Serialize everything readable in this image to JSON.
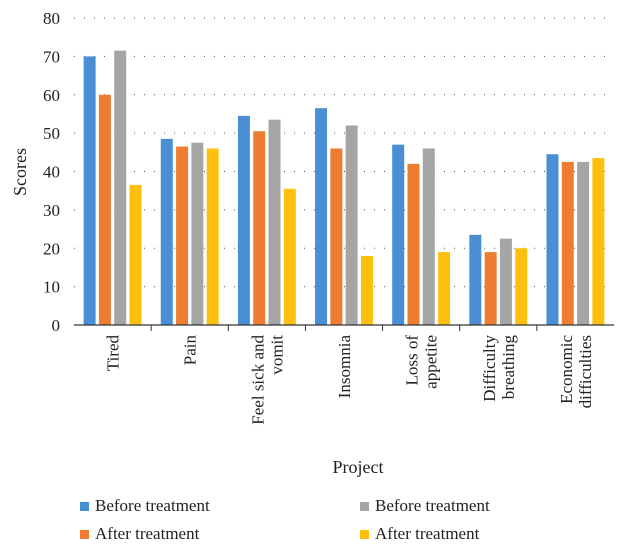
{
  "chart_data": {
    "type": "bar",
    "title": "",
    "xlabel": "Project",
    "ylabel": "Scores",
    "ylim": [
      0,
      80
    ],
    "yticks": [
      0,
      10,
      20,
      30,
      40,
      50,
      60,
      70,
      80
    ],
    "grid": "horizontal-dotted",
    "legend_position": "bottom",
    "categories": [
      [
        "Tired"
      ],
      [
        "Pain"
      ],
      [
        "Feel sick and",
        "vomit"
      ],
      [
        "Insomnia"
      ],
      [
        "Loss of",
        "appetite"
      ],
      [
        "Difficulty",
        "breathing"
      ],
      [
        "Economic",
        "difficulties"
      ]
    ],
    "series": [
      {
        "name": "Before treatment",
        "color": "#4a8fd4",
        "values": [
          70,
          48.5,
          54.5,
          56.5,
          47,
          23.5,
          44.5
        ]
      },
      {
        "name": "After treatment",
        "color": "#ee7d31",
        "values": [
          60,
          46.5,
          50.5,
          46,
          42,
          19,
          42.5
        ]
      },
      {
        "name": "Before treatment",
        "color": "#a5a5a5",
        "values": [
          71.5,
          47.5,
          53.5,
          52,
          46,
          22.5,
          42.5
        ]
      },
      {
        "name": "After treatment",
        "color": "#fec00e",
        "values": [
          36.5,
          46,
          35.5,
          18,
          19,
          20,
          43.5
        ]
      }
    ]
  }
}
